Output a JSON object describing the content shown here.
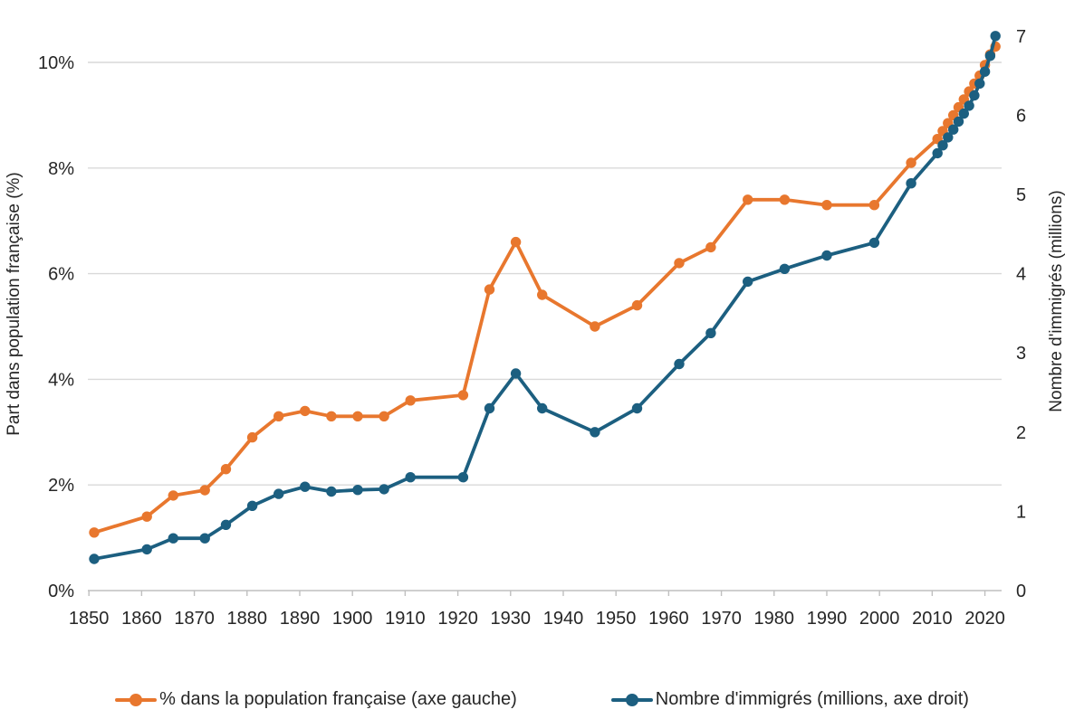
{
  "chart_data": {
    "type": "line",
    "title": "",
    "x": [
      1851,
      1861,
      1866,
      1872,
      1876,
      1881,
      1886,
      1891,
      1896,
      1901,
      1906,
      1911,
      1921,
      1926,
      1931,
      1936,
      1946,
      1954,
      1962,
      1968,
      1975,
      1982,
      1990,
      1999,
      2006,
      2011,
      2012,
      2013,
      2014,
      2015,
      2016,
      2017,
      2018,
      2019,
      2020,
      2021,
      2022
    ],
    "series": [
      {
        "name": "% dans la population française (axe gauche)",
        "axis": "left",
        "color": "#E8772E",
        "values": [
          1.1,
          1.4,
          1.8,
          1.9,
          2.3,
          2.9,
          3.3,
          3.4,
          3.3,
          3.3,
          3.3,
          3.6,
          3.7,
          5.7,
          6.6,
          5.6,
          5.0,
          5.4,
          6.2,
          6.5,
          7.4,
          7.4,
          7.3,
          7.3,
          8.1,
          8.55,
          8.7,
          8.85,
          9.0,
          9.15,
          9.3,
          9.45,
          9.6,
          9.75,
          9.95,
          10.15,
          10.3
        ]
      },
      {
        "name": "Nombre d'immigrés (millions, axe droit)",
        "axis": "right",
        "color": "#1C5F80",
        "values": [
          0.4,
          0.52,
          0.66,
          0.66,
          0.83,
          1.07,
          1.22,
          1.31,
          1.25,
          1.27,
          1.28,
          1.43,
          1.43,
          2.3,
          2.74,
          2.3,
          2.0,
          2.3,
          2.86,
          3.25,
          3.9,
          4.06,
          4.23,
          4.39,
          5.14,
          5.52,
          5.62,
          5.72,
          5.82,
          5.92,
          6.02,
          6.12,
          6.25,
          6.4,
          6.55,
          6.75,
          7.0
        ]
      }
    ],
    "x_axis": {
      "tick_years": [
        1850,
        1860,
        1870,
        1880,
        1890,
        1900,
        1910,
        1920,
        1930,
        1940,
        1950,
        1960,
        1970,
        1980,
        1990,
        2000,
        2010,
        2020
      ],
      "tick_labels": [
        "1850",
        "1860",
        "1870",
        "1880",
        "1890",
        "1900",
        "1910",
        "1920",
        "1930",
        "1940",
        "1950",
        "1960",
        "1970",
        "1980",
        "1990",
        "2000",
        "2010",
        "2020"
      ],
      "range": [
        1849,
        2024
      ]
    },
    "left_axis": {
      "title": "Part dans population française (%)",
      "tick_values": [
        0,
        2,
        4,
        6,
        8,
        10
      ],
      "tick_labels": [
        "0%",
        "2%",
        "4%",
        "6%",
        "8%",
        "10%"
      ],
      "range": [
        0,
        10.7
      ]
    },
    "right_axis": {
      "title": "Nombre d'immigrés (millions)",
      "tick_values": [
        0,
        1,
        2,
        3,
        4,
        5,
        6,
        7
      ],
      "tick_labels": [
        "0",
        "1",
        "2",
        "3",
        "4",
        "5",
        "6",
        "7"
      ],
      "range": [
        0,
        7.15
      ]
    },
    "grid": "horizontal gridlines at 2% intervals",
    "legend_position": "bottom"
  },
  "colors": {
    "orange_series": "#E8772E",
    "blue_series": "#1C5F80",
    "gridline": "#D9D9D9",
    "axis_line": "#BFBFBF",
    "text": "#262626"
  }
}
